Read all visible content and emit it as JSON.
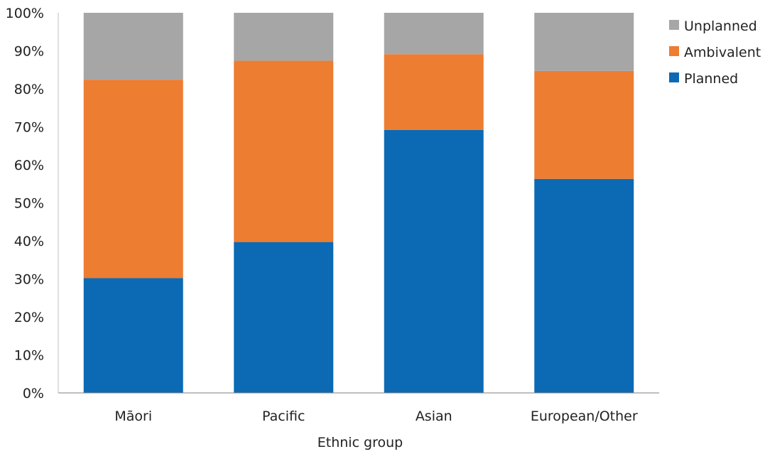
{
  "chart_data": {
    "type": "bar",
    "stacked": true,
    "categories": [
      "Māori",
      "Pacific",
      "Asian",
      "European/Other"
    ],
    "series": [
      {
        "name": "Planned",
        "color": "#0c6ab4",
        "values": [
          30.2,
          39.7,
          69.2,
          56.3
        ]
      },
      {
        "name": "Ambivalent",
        "color": "#ed7d31",
        "values": [
          52.2,
          47.7,
          19.9,
          28.4
        ]
      },
      {
        "name": "Unplanned",
        "color": "#a6a6a6",
        "values": [
          17.6,
          12.6,
          10.9,
          15.3
        ]
      }
    ],
    "legend_order": [
      "Unplanned",
      "Ambivalent",
      "Planned"
    ],
    "legend_position": "top-right",
    "xlabel": "Ethnic group",
    "ylabel": "",
    "ylim": [
      0,
      100
    ],
    "yticks": [
      "0%",
      "10%",
      "20%",
      "30%",
      "40%",
      "50%",
      "60%",
      "70%",
      "80%",
      "90%",
      "100%"
    ],
    "grid": false
  }
}
